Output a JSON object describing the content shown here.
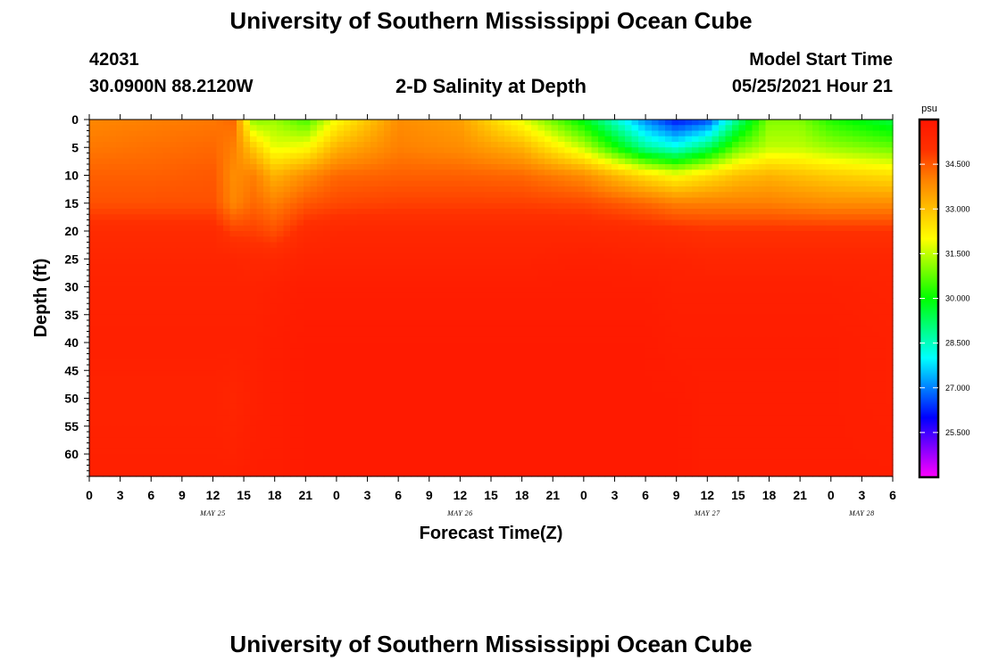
{
  "header": {
    "title_top": "University of Southern Mississippi Ocean Cube",
    "station_id": "42031",
    "station_coords": "30.0900N  88.2120W",
    "plot_title": "2-D Salinity at Depth",
    "start_label": "Model Start Time",
    "start_value": "05/25/2021 Hour 21"
  },
  "footer": {
    "title_bottom": "University of Southern Mississippi Ocean Cube"
  },
  "chart_data": {
    "type": "heatmap",
    "title": "2-D Salinity at Depth",
    "xlabel": "Forecast Time(Z)",
    "ylabel": "Depth (ft)",
    "x_range_hours": [
      0,
      78
    ],
    "ylim": [
      0,
      64
    ],
    "y_inverted": true,
    "x_ticks": [
      "0",
      "3",
      "6",
      "9",
      "12",
      "15",
      "18",
      "21",
      "0",
      "3",
      "6",
      "9",
      "12",
      "15",
      "18",
      "21",
      "0",
      "3",
      "6",
      "9",
      "12",
      "15",
      "18",
      "21",
      "0",
      "3",
      "6"
    ],
    "y_ticks": [
      "0",
      "5",
      "10",
      "15",
      "20",
      "25",
      "30",
      "35",
      "40",
      "45",
      "50",
      "55",
      "60"
    ],
    "day_labels": [
      {
        "label": "MAY 25",
        "hour": 12
      },
      {
        "label": "MAY 26",
        "hour": 36
      },
      {
        "label": "MAY 27",
        "hour": 60
      },
      {
        "label": "MAY 28",
        "hour": 75
      }
    ],
    "colorbar": {
      "unit": "psu",
      "min": 24.0,
      "max": 36.0,
      "tick_values": [
        34.5,
        33.0,
        31.5,
        30.0,
        28.5,
        27.0,
        25.5
      ],
      "tick_labels": [
        "34.500",
        "33.000",
        "31.500",
        "30.000",
        "28.500",
        "27.000",
        "25.500"
      ],
      "colormap": [
        "#ff00ff",
        "#8000ff",
        "#0000ff",
        "#0080ff",
        "#00ffff",
        "#00ff80",
        "#00ff00",
        "#80ff00",
        "#ffff00",
        "#ffc000",
        "#ff8000",
        "#ff3000",
        "#ff1500"
      ]
    },
    "time_hours": [
      0,
      6,
      12,
      14,
      16,
      18,
      21,
      24,
      30,
      36,
      42,
      48,
      54,
      57,
      60,
      63,
      66,
      69,
      72,
      78
    ],
    "depths_ft": [
      0,
      5,
      10,
      15,
      20,
      25,
      30,
      40,
      50,
      64
    ],
    "salinity_psu": [
      [
        33.9,
        34.0,
        34.1,
        34.3,
        31.0,
        31.2,
        30.5,
        32.0,
        33.8,
        33.5,
        31.8,
        29.8,
        27.0,
        26.1,
        26.5,
        29.0,
        31.0,
        31.0,
        30.2,
        29.5
      ],
      [
        34.1,
        34.2,
        34.3,
        34.0,
        32.8,
        31.8,
        32.0,
        33.2,
        34.0,
        33.8,
        33.2,
        31.5,
        28.8,
        28.2,
        29.2,
        30.8,
        31.5,
        31.5,
        31.2,
        30.8
      ],
      [
        34.4,
        34.4,
        34.5,
        33.8,
        34.0,
        33.2,
        33.8,
        34.3,
        34.4,
        34.4,
        34.3,
        33.8,
        32.5,
        32.0,
        32.5,
        33.0,
        33.2,
        33.0,
        32.8,
        32.5
      ],
      [
        34.6,
        34.6,
        34.6,
        33.9,
        34.3,
        34.0,
        34.5,
        34.7,
        34.8,
        34.8,
        34.8,
        34.7,
        34.3,
        34.0,
        34.0,
        34.0,
        34.0,
        33.9,
        33.8,
        33.8
      ],
      [
        35.2,
        35.2,
        35.2,
        34.8,
        34.8,
        34.6,
        35.2,
        35.3,
        35.3,
        35.3,
        35.3,
        35.3,
        35.2,
        35.1,
        35.0,
        35.0,
        35.0,
        35.0,
        35.0,
        35.0
      ],
      [
        35.4,
        35.4,
        35.4,
        35.4,
        35.3,
        35.3,
        35.5,
        35.5,
        35.5,
        35.5,
        35.5,
        35.6,
        35.5,
        35.5,
        35.4,
        35.4,
        35.4,
        35.4,
        35.4,
        35.4
      ],
      [
        35.5,
        35.5,
        35.5,
        35.5,
        35.5,
        35.6,
        35.7,
        35.7,
        35.7,
        35.7,
        35.7,
        35.7,
        35.7,
        35.6,
        35.6,
        35.6,
        35.6,
        35.6,
        35.6,
        35.5
      ],
      [
        35.6,
        35.6,
        35.6,
        35.6,
        35.6,
        35.7,
        35.8,
        35.8,
        35.8,
        35.8,
        35.8,
        35.8,
        35.8,
        35.7,
        35.7,
        35.7,
        35.7,
        35.7,
        35.7,
        35.6
      ],
      [
        35.5,
        35.5,
        35.5,
        35.4,
        35.6,
        35.7,
        35.8,
        35.8,
        35.8,
        35.8,
        35.8,
        35.8,
        35.8,
        35.8,
        35.7,
        35.7,
        35.7,
        35.7,
        35.7,
        35.6
      ],
      [
        35.6,
        35.6,
        35.6,
        35.6,
        35.7,
        35.7,
        35.8,
        35.8,
        35.8,
        35.8,
        35.8,
        35.8,
        35.8,
        35.8,
        35.7,
        35.7,
        35.7,
        35.7,
        35.7,
        35.7
      ]
    ]
  }
}
